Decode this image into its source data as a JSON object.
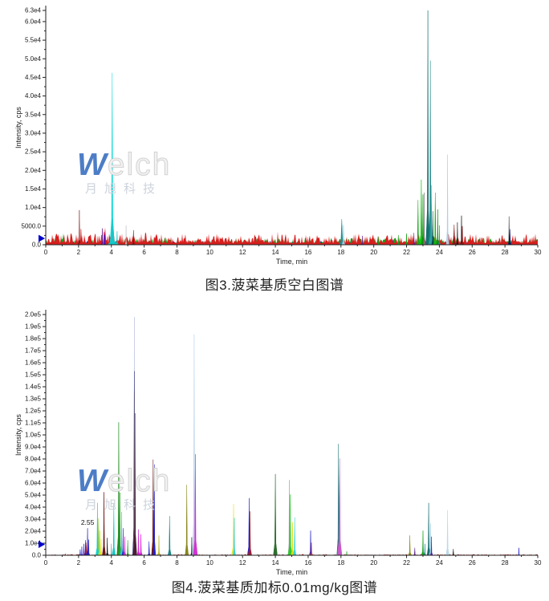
{
  "watermark": {
    "brand_w": "W",
    "brand_rest": "elch",
    "subtext": "月旭科技",
    "w_color": "#4d7dc6",
    "outline_color": "#d2d2d2",
    "sub_color": "#ccd3dc"
  },
  "chart_data": [
    {
      "type": "line",
      "name": "LC-MS/MS total ion chromatogram, spinach matrix blank",
      "caption": "图3.菠菜基质空白图谱",
      "xlabel": "Time, min",
      "ylabel": "Intensity, cps",
      "xlim": [
        0,
        30
      ],
      "ylim": [
        0,
        63000
      ],
      "xticks": [
        0,
        2,
        4,
        6,
        8,
        10,
        12,
        14,
        16,
        18,
        20,
        22,
        24,
        26,
        28,
        30
      ],
      "ytick_step": 5000,
      "yticks": [
        {
          "v": 0,
          "label": "0.0"
        },
        {
          "v": 5000,
          "label": "5000.0"
        },
        {
          "v": 10000,
          "label": "1.0e4"
        },
        {
          "v": 15000,
          "label": "1.5e4"
        },
        {
          "v": 20000,
          "label": "2.0e4"
        },
        {
          "v": 25000,
          "label": "2.5e4"
        },
        {
          "v": 30000,
          "label": "3.0e4"
        },
        {
          "v": 35000,
          "label": "3.5e4"
        },
        {
          "v": 40000,
          "label": "4.0e4"
        },
        {
          "v": 45000,
          "label": "4.5e4"
        },
        {
          "v": 50000,
          "label": "5.0e4"
        },
        {
          "v": 55000,
          "label": "5.5e4"
        },
        {
          "v": 60000,
          "label": "6.0e4"
        },
        {
          "v": 63000,
          "label": "6.3e4"
        }
      ],
      "marker": {
        "y": 1700,
        "color": "#0000cc"
      },
      "annotation": null,
      "noise": [
        {
          "color": "#1414b4",
          "base": 150,
          "amp": 900
        },
        {
          "color": "#262626",
          "base": 120,
          "amp": 800
        },
        {
          "color": "#18a018",
          "base": 250,
          "amp": 1600
        },
        {
          "color": "#d81e1e",
          "base": 400,
          "amp": 2600
        }
      ],
      "peaks_format": [
        "time_min",
        "intensity_cps",
        "color",
        "half_width_min"
      ],
      "peaks": [
        [
          2.05,
          9300,
          "#7a1616",
          0.07
        ],
        [
          2.15,
          4200,
          "#d81e1e",
          0.12
        ],
        [
          3.4,
          2600,
          "#d81e1e",
          0.1
        ],
        [
          3.45,
          4400,
          "#6a1a8a",
          0.08
        ],
        [
          3.55,
          3400,
          "#c428c4",
          0.08
        ],
        [
          3.6,
          2600,
          "#1414b4",
          0.06
        ],
        [
          4.05,
          46200,
          "#12d8d8",
          0.13
        ],
        [
          4.08,
          7000,
          "#12c8c8",
          0.3
        ],
        [
          4.35,
          3600,
          "#12c8c8",
          0.09
        ],
        [
          4.9,
          5200,
          "#c0c0c0",
          0.05
        ],
        [
          5.35,
          3900,
          "#7a1616",
          0.08
        ],
        [
          18.05,
          6900,
          "#1d8f8f",
          0.16
        ],
        [
          18.15,
          5200,
          "#9ecbe4",
          0.1
        ],
        [
          19.3,
          2400,
          "#6a1a8a",
          0.08
        ],
        [
          20.3,
          2200,
          "#18a018",
          0.1
        ],
        [
          21.5,
          2600,
          "#18a018",
          0.1
        ],
        [
          22.0,
          3000,
          "#18a018",
          0.1
        ],
        [
          22.45,
          3200,
          "#7a1a9a",
          0.08
        ],
        [
          22.7,
          12000,
          "#18a818",
          0.1
        ],
        [
          22.9,
          17500,
          "#12c212",
          0.12
        ],
        [
          23.0,
          13500,
          "#0e8f0e",
          0.1
        ],
        [
          23.08,
          14000,
          "#777777",
          0.05
        ],
        [
          23.3,
          63000,
          "#157070",
          0.12
        ],
        [
          23.45,
          49500,
          "#1d8585",
          0.1
        ],
        [
          23.5,
          16000,
          "#2d9f9f",
          0.15
        ],
        [
          23.6,
          9000,
          "#0a4a4a",
          0.07
        ],
        [
          23.75,
          14000,
          "#12b212",
          0.1
        ],
        [
          23.9,
          9500,
          "#0e8f0e",
          0.08
        ],
        [
          24.0,
          5200,
          "#1d8f8f",
          0.06
        ],
        [
          24.5,
          24200,
          "#a9cfe5",
          0.08
        ],
        [
          24.9,
          5400,
          "#8a1616",
          0.12
        ],
        [
          25.1,
          6000,
          "#1a1a1a",
          0.07
        ],
        [
          25.35,
          7800,
          "#1a1a1a",
          0.06
        ],
        [
          25.4,
          5000,
          "#8a1616",
          0.1
        ],
        [
          28.25,
          7600,
          "#2b2b2b",
          0.06
        ],
        [
          28.3,
          4200,
          "#10106e",
          0.1
        ]
      ]
    },
    {
      "type": "line",
      "name": "LC-MS/MS chromatogram, spinach matrix spiked at 0.01 mg/kg",
      "caption": "图4.菠菜基质加标0.01mg/kg图谱",
      "xlabel": "Time, min",
      "ylabel": "Intensity, cps",
      "xlim": [
        0,
        30
      ],
      "ylim": [
        0,
        200000
      ],
      "xticks": [
        0,
        2,
        4,
        6,
        8,
        10,
        12,
        14,
        16,
        18,
        20,
        22,
        24,
        26,
        28,
        30
      ],
      "ytick_step": 10000,
      "yticks": [
        {
          "v": 0,
          "label": "0.0"
        },
        {
          "v": 10000,
          "label": "1.0e4"
        },
        {
          "v": 20000,
          "label": "2.0e4"
        },
        {
          "v": 30000,
          "label": "3.0e4"
        },
        {
          "v": 40000,
          "label": "4.0e4"
        },
        {
          "v": 50000,
          "label": "5.0e4"
        },
        {
          "v": 60000,
          "label": "6.0e4"
        },
        {
          "v": 70000,
          "label": "7.0e4"
        },
        {
          "v": 80000,
          "label": "8.0e4"
        },
        {
          "v": 90000,
          "label": "9.0e4"
        },
        {
          "v": 100000,
          "label": "1.0e5"
        },
        {
          "v": 110000,
          "label": "1.1e5"
        },
        {
          "v": 120000,
          "label": "1.2e5"
        },
        {
          "v": 130000,
          "label": "1.3e5"
        },
        {
          "v": 140000,
          "label": "1.4e5"
        },
        {
          "v": 150000,
          "label": "1.5e5"
        },
        {
          "v": 160000,
          "label": "1.6e5"
        },
        {
          "v": 170000,
          "label": "1.7e5"
        },
        {
          "v": 180000,
          "label": "1.8e5"
        },
        {
          "v": 190000,
          "label": "1.9e5"
        },
        {
          "v": 200000,
          "label": "2.0e5"
        }
      ],
      "marker": {
        "y": 9000,
        "color": "#0000cc"
      },
      "annotation": {
        "text": "2.55",
        "x": 2.55,
        "y": 23500
      },
      "noise": [
        {
          "color": "#18a018",
          "base": 60,
          "amp": 260
        },
        {
          "color": "#1414b4",
          "base": 60,
          "amp": 260
        },
        {
          "color": "#b41414",
          "base": 150,
          "amp": 700
        },
        {
          "color": "#141414",
          "base": 80,
          "amp": 450
        }
      ],
      "peaks_format": [
        "time_min",
        "intensity_cps",
        "color",
        "half_width_min"
      ],
      "peaks": [
        [
          1.2,
          1400,
          "#18a018",
          0.05
        ],
        [
          2.1,
          4800,
          "#1e1ec8",
          0.06
        ],
        [
          2.2,
          7200,
          "#1e1ec8",
          0.06
        ],
        [
          2.32,
          9500,
          "#1e1ec8",
          0.06
        ],
        [
          2.45,
          10500,
          "#c83232",
          0.22
        ],
        [
          2.42,
          12500,
          "#1e1ec8",
          0.06
        ],
        [
          2.55,
          22500,
          "#1e1ec8",
          0.08
        ],
        [
          2.62,
          13000,
          "#1e1ec8",
          0.06
        ],
        [
          3.22,
          30500,
          "#8fc832",
          0.13
        ],
        [
          3.15,
          43500,
          "#12d0d0",
          0.1
        ],
        [
          3.3,
          20500,
          "#d8dc14",
          0.1
        ],
        [
          3.38,
          13500,
          "#e6e632",
          0.08
        ],
        [
          3.55,
          52500,
          "#6e1616",
          0.1
        ],
        [
          3.75,
          14500,
          "#141414",
          0.07
        ],
        [
          4.0,
          9500,
          "#8c8c8c",
          0.06
        ],
        [
          4.15,
          42500,
          "#12c8c8",
          0.1
        ],
        [
          4.45,
          110500,
          "#1e8c1e",
          0.11
        ],
        [
          4.52,
          52000,
          "#28a028",
          0.09
        ],
        [
          4.62,
          36000,
          "#32c8c8",
          0.09
        ],
        [
          4.72,
          22500,
          "#2828d2",
          0.07
        ],
        [
          4.82,
          15500,
          "#c832c8",
          0.08
        ],
        [
          5.0,
          12500,
          "#1ea01e",
          0.07
        ],
        [
          5.4,
          198000,
          "#a8b0d8",
          0.05
        ],
        [
          5.4,
          153000,
          "#16166e",
          0.1
        ],
        [
          5.42,
          136000,
          "#8a8a96",
          0.09
        ],
        [
          5.44,
          118000,
          "#4b1e32",
          0.11
        ],
        [
          5.65,
          21500,
          "#d21ed2",
          0.09
        ],
        [
          5.8,
          17500,
          "#d21ed2",
          0.09
        ],
        [
          6.3,
          11500,
          "#1e1ec8",
          0.07
        ],
        [
          6.55,
          79500,
          "#6e1616",
          0.1
        ],
        [
          6.62,
          75500,
          "#2323c8",
          0.08
        ],
        [
          6.9,
          16500,
          "#b4b41e",
          0.08
        ],
        [
          7.55,
          32500,
          "#1e8787",
          0.1
        ],
        [
          8.6,
          58500,
          "#87871a",
          0.1
        ],
        [
          8.9,
          15000,
          "#232323",
          0.06
        ],
        [
          9.05,
          183500,
          "#b9d5e9",
          0.12
        ],
        [
          9.12,
          84000,
          "#d232d2",
          0.13
        ],
        [
          11.45,
          42500,
          "#e6e63c",
          0.13
        ],
        [
          11.5,
          31000,
          "#3cd2d2",
          0.08
        ],
        [
          12.4,
          47500,
          "#1e1ec8",
          0.1
        ],
        [
          12.45,
          36500,
          "#9b1e32",
          0.11
        ],
        [
          14.0,
          67500,
          "#2d6e2d",
          0.12
        ],
        [
          14.85,
          62500,
          "#a0a0a0",
          0.07
        ],
        [
          14.9,
          50500,
          "#2dc82d",
          0.13
        ],
        [
          15.05,
          27500,
          "#d8dc14",
          0.1
        ],
        [
          15.18,
          31500,
          "#2dd2d2",
          0.08
        ],
        [
          16.15,
          20500,
          "#1e1ec8",
          0.08
        ],
        [
          16.2,
          10500,
          "#c83232",
          0.09
        ],
        [
          17.85,
          92500,
          "#1e7878",
          0.1
        ],
        [
          17.92,
          80500,
          "#c85ac8",
          0.14
        ],
        [
          18.35,
          3200,
          "#1ea01e",
          0.06
        ],
        [
          22.2,
          16500,
          "#8f8f1e",
          0.09
        ],
        [
          22.5,
          6200,
          "#5a1e87",
          0.07
        ],
        [
          23.0,
          20500,
          "#1ea01e",
          0.1
        ],
        [
          23.12,
          9500,
          "#1e8787",
          0.07
        ],
        [
          23.35,
          43500,
          "#176f6f",
          0.1
        ],
        [
          23.46,
          26500,
          "#9ecbe4",
          0.08
        ],
        [
          23.52,
          15500,
          "#501ea0",
          0.07
        ],
        [
          24.5,
          37500,
          "#b9d9e9",
          0.1
        ],
        [
          24.85,
          5200,
          "#141414",
          0.07
        ],
        [
          28.85,
          6200,
          "#1e1ec8",
          0.05
        ]
      ]
    }
  ]
}
